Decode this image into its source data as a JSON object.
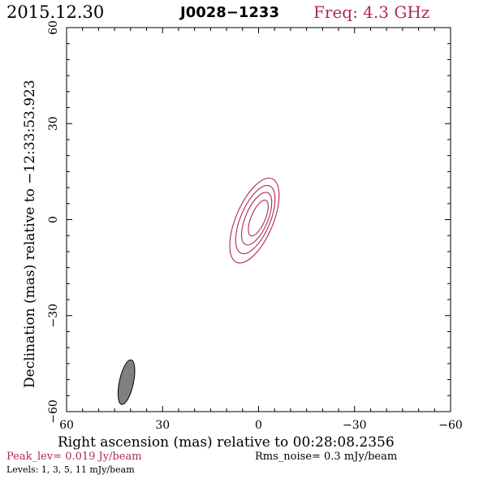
{
  "header": {
    "date": "2015.12.30",
    "source": "J0028−1233",
    "freq": "Freq: 4.3 GHz"
  },
  "footer": {
    "peak": "Peak_lev=  0.019 Jy/beam",
    "rms": "Rms_noise=   0.3 mJy/beam",
    "levels": "Levels:   1,   3,   5,   11 mJy/beam"
  },
  "colors": {
    "accent": "#b0284f",
    "contour": "#b0284f",
    "beam_fill": "#808080",
    "axis": "#000000"
  },
  "chart_data": {
    "type": "contour",
    "title": "J0028−1233",
    "xlabel": "Right ascension (mas) relative to 00:28:08.2356",
    "ylabel": "Declination (mas) relative to −12:33:53.923",
    "xlim": [
      60,
      -60
    ],
    "ylim": [
      -60,
      60
    ],
    "xticks": [
      60,
      30,
      0,
      -30,
      -60
    ],
    "yticks": [
      -60,
      -30,
      0,
      30,
      60
    ],
    "xtick_labels": [
      "60",
      "30",
      "0",
      "−30",
      "−60"
    ],
    "ytick_labels": [
      "−60",
      "−30",
      "0",
      "30",
      "60"
    ],
    "contour_levels_mJy": [
      1,
      3,
      5,
      11
    ],
    "contours": [
      {
        "level": 1,
        "center": [
          1.3,
          -0.3
        ],
        "semi_major": 14.2,
        "semi_minor": 5.8,
        "pa_deg": 157
      },
      {
        "level": 3,
        "center": [
          1.0,
          0.0
        ],
        "semi_major": 11.4,
        "semi_minor": 4.6,
        "pa_deg": 157
      },
      {
        "level": 5,
        "center": [
          0.6,
          0.3
        ],
        "semi_major": 8.8,
        "semi_minor": 3.5,
        "pa_deg": 157
      },
      {
        "level": 11,
        "center": [
          0.1,
          0.5
        ],
        "semi_major": 6.0,
        "semi_minor": 2.2,
        "pa_deg": 157
      }
    ],
    "beam": {
      "center": [
        41.3,
        -50.8
      ],
      "semi_major": 7.1,
      "semi_minor": 2.2,
      "pa_deg": 168
    }
  }
}
